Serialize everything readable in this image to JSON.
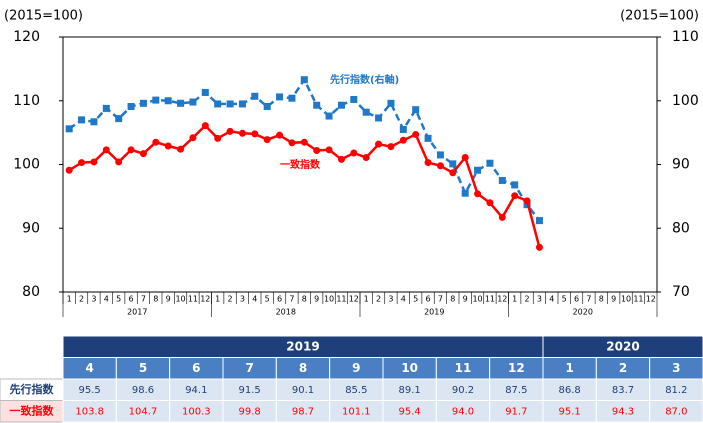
{
  "chart_data": {
    "type": "line",
    "ylabel": "(2015=100)",
    "y2label": "(2015=100)",
    "ylim": [
      80,
      120
    ],
    "yticks": [
      80,
      90,
      100,
      110,
      120
    ],
    "y2lim": [
      70,
      110
    ],
    "y2ticks": [
      70,
      80,
      90,
      100,
      110
    ],
    "categories": [
      "1",
      "2",
      "3",
      "4",
      "5",
      "6",
      "7",
      "8",
      "9",
      "10",
      "11",
      "12",
      "1",
      "2",
      "3",
      "4",
      "5",
      "6",
      "7",
      "8",
      "9",
      "10",
      "11",
      "12",
      "1",
      "2",
      "3",
      "4",
      "5",
      "6",
      "7",
      "8",
      "9",
      "10",
      "11",
      "12",
      "1",
      "2",
      "3",
      "4",
      "5",
      "6",
      "7",
      "8",
      "9",
      "10",
      "11",
      "12"
    ],
    "year_labels": [
      "2017",
      "2018",
      "2019",
      "2020"
    ],
    "series": [
      {
        "name": "先行指数(右軸)",
        "color": "#1f78c8",
        "axis": "y2",
        "marker": "square",
        "dashed": true,
        "values": [
          95.6,
          97.0,
          96.7,
          98.8,
          97.2,
          99.1,
          99.6,
          100.1,
          100.0,
          99.6,
          99.8,
          101.3,
          99.5,
          99.5,
          99.5,
          100.7,
          99.1,
          100.6,
          100.4,
          103.3,
          99.3,
          97.6,
          99.3,
          100.2,
          98.2,
          97.3,
          99.6,
          95.5,
          98.6,
          94.1,
          91.5,
          90.1,
          85.5,
          89.1,
          90.2,
          87.5,
          86.8,
          83.7,
          81.2,
          null,
          null,
          null,
          null,
          null,
          null,
          null,
          null,
          null
        ]
      },
      {
        "name": "一致指数",
        "color": "#ff0000",
        "axis": "y",
        "marker": "circle",
        "dashed": false,
        "values": [
          99.1,
          100.3,
          100.4,
          102.3,
          100.4,
          102.3,
          101.7,
          103.5,
          102.9,
          102.4,
          104.2,
          106.1,
          104.1,
          105.2,
          104.9,
          104.8,
          103.9,
          104.6,
          103.4,
          103.5,
          102.2,
          102.3,
          100.8,
          101.8,
          101.1,
          103.2,
          102.8,
          103.8,
          104.7,
          100.3,
          99.8,
          98.7,
          101.1,
          95.4,
          94.0,
          91.7,
          95.1,
          94.3,
          87.0,
          null,
          null,
          null,
          null,
          null,
          null,
          null,
          null,
          null
        ]
      }
    ]
  },
  "table": {
    "year_groups": [
      {
        "year": "2019",
        "months": [
          "4",
          "5",
          "6",
          "7",
          "8",
          "9",
          "10",
          "11",
          "12"
        ]
      },
      {
        "year": "2020",
        "months": [
          "1",
          "2",
          "3"
        ]
      }
    ],
    "rows": [
      {
        "label": "先行指数",
        "values": [
          "95.5",
          "98.6",
          "94.1",
          "91.5",
          "90.1",
          "85.5",
          "89.1",
          "90.2",
          "87.5",
          "86.8",
          "83.7",
          "81.2"
        ]
      },
      {
        "label": "一致指数",
        "values": [
          "103.8",
          "104.7",
          "100.3",
          "99.8",
          "98.7",
          "101.1",
          "95.4",
          "94.0",
          "91.7",
          "95.1",
          "94.3",
          "87.0"
        ]
      }
    ]
  }
}
